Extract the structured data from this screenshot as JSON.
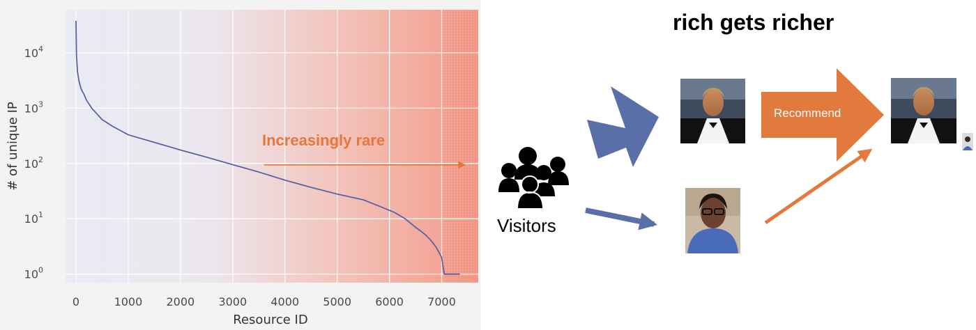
{
  "chart_data": {
    "type": "line",
    "xlabel": "Resource ID",
    "ylabel": "# of unique IP",
    "yscale": "log",
    "xlim": [
      -200,
      7700
    ],
    "ylim": [
      0.7,
      60000
    ],
    "x_ticks": [
      0,
      1000,
      2000,
      3000,
      4000,
      5000,
      6000,
      7000
    ],
    "y_ticks": [
      {
        "value": 1,
        "label": "10^0"
      },
      {
        "value": 10,
        "label": "10^1"
      },
      {
        "value": 100,
        "label": "10^2"
      },
      {
        "value": 1000,
        "label": "10^3"
      },
      {
        "value": 10000,
        "label": "10^4"
      }
    ],
    "grid": true,
    "background": "gradient from light lavender to salmon",
    "line_color": "#5863a3",
    "series": [
      {
        "x": [
          0,
          10,
          30,
          60,
          100,
          150,
          200,
          300,
          500,
          700,
          1000,
          1500,
          2000,
          2500,
          3000,
          3500,
          4000,
          4500,
          5000,
          5500,
          5800,
          6100,
          6300,
          6500,
          6600,
          6700,
          6800,
          6900,
          7000,
          7050,
          7100,
          7200,
          7350
        ],
        "y": [
          38000,
          9000,
          4500,
          3000,
          2200,
          1800,
          1400,
          1000,
          620,
          470,
          330,
          240,
          175,
          130,
          95,
          70,
          50,
          37,
          28,
          22,
          17,
          13,
          10,
          7,
          6,
          5,
          4,
          3,
          2,
          1,
          1,
          1,
          1
        ]
      }
    ],
    "annotations": [
      {
        "text": "Increasingly rare",
        "color": "#e8763a",
        "arrow_from_x": 3600,
        "arrow_to_x": 7450,
        "at_y": 100
      }
    ]
  },
  "diagram": {
    "title": "rich gets richer",
    "visitors_label": "Visitors",
    "recommend_label": "Recommend",
    "colors": {
      "blue_arrow": "#5a6fa8",
      "orange_arrow": "#e37a3d",
      "orange_thin": "#e8763a"
    },
    "icons": [
      "people-group-icon",
      "man-in-tuxedo-photo",
      "person-with-glasses-photo"
    ]
  }
}
